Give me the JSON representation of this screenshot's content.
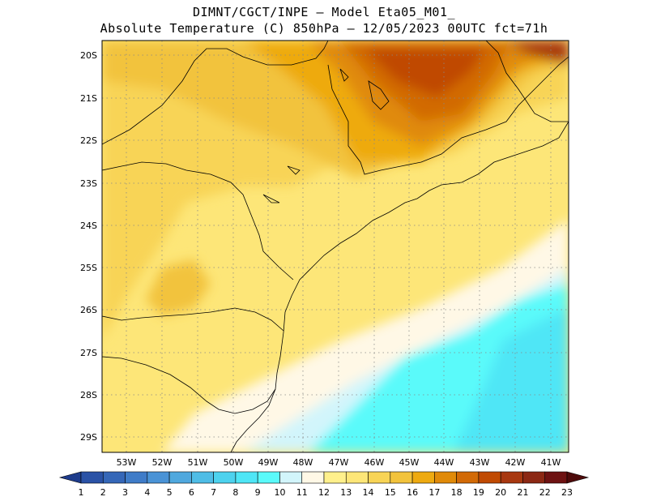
{
  "header": {
    "line1": "DIMNT/CGCT/INPE –  Model Eta05_M01_",
    "line2": "Absolute Temperature (C) 850hPa –  12/05/2023 00UTC fct=71h"
  },
  "map": {
    "lat_labels": [
      "20S",
      "21S",
      "22S",
      "23S",
      "24S",
      "25S",
      "26S",
      "27S",
      "28S",
      "29S"
    ],
    "lon_labels": [
      "53W",
      "52W",
      "51W",
      "50W",
      "49W",
      "48W",
      "47W",
      "46W",
      "45W",
      "44W",
      "43W",
      "42W",
      "41W"
    ]
  },
  "colorbar": {
    "labels": [
      "1",
      "2",
      "3",
      "4",
      "5",
      "6",
      "7",
      "8",
      "9",
      "10",
      "11",
      "12",
      "13",
      "14",
      "15",
      "16",
      "17",
      "18",
      "19",
      "20",
      "21",
      "22",
      "23"
    ],
    "colors": [
      "#1e3c8c",
      "#2a52a6",
      "#3567b8",
      "#3f7cc8",
      "#4a93d6",
      "#50a8de",
      "#4fbde6",
      "#4dd2ee",
      "#4fe6f6",
      "#5afafa",
      "#d2f5fb",
      "#fff8e6",
      "#fff08c",
      "#fde678",
      "#f8d456",
      "#f2c33c",
      "#eeaa10",
      "#e08a08",
      "#d26a06",
      "#c04a02",
      "#a83810",
      "#8c2814",
      "#6e1212",
      "#4e0a0a"
    ]
  }
}
